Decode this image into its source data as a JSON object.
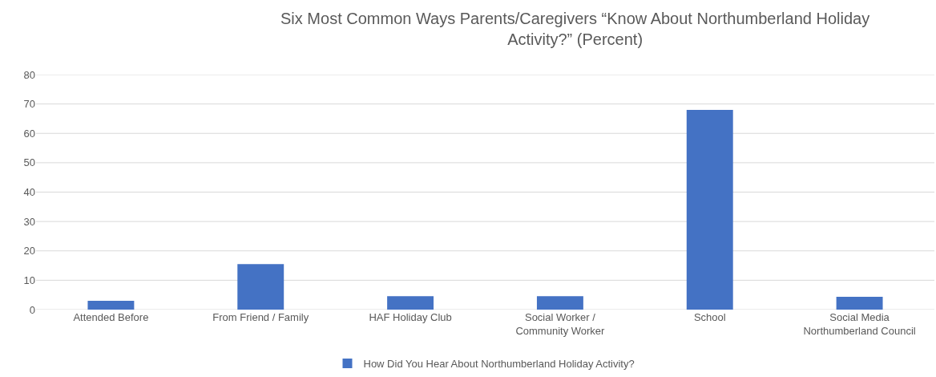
{
  "chart_data": {
    "type": "bar",
    "title": "Six Most Common Ways Parents/Caregivers “Know About Northumberland Holiday\nActivity?” (Percent)",
    "categories": [
      "Attended Before",
      "From Friend / Family",
      "HAF Holiday Club",
      "Social Worker /\nCommunity Worker",
      "School",
      "Social Media\nNorthumberland Council"
    ],
    "series": [
      {
        "name": "How Did You Hear About Northumberland Holiday Activity?",
        "color": "#4472c4",
        "values": [
          3.0,
          15.5,
          4.6,
          4.6,
          68,
          4.4
        ]
      }
    ],
    "ylim": [
      0,
      80
    ],
    "yticks": [
      0,
      10,
      20,
      30,
      40,
      50,
      60,
      70,
      80
    ],
    "grid": "y",
    "legend": "bottom"
  }
}
